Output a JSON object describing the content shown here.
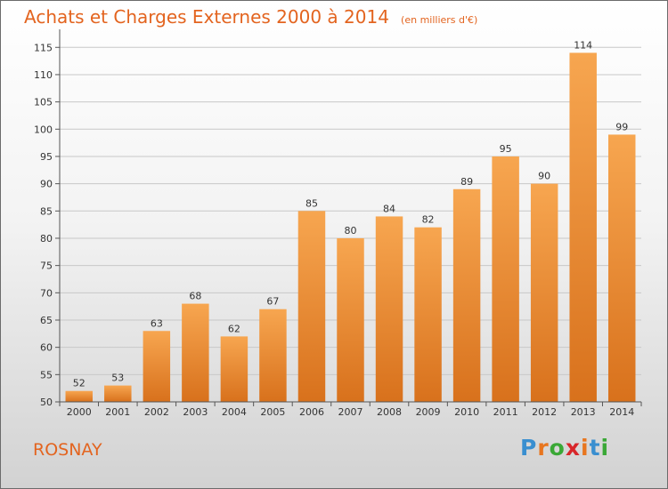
{
  "title": "Achats et Charges Externes 2000 à 2014",
  "subtitle": "(en milliers d'€)",
  "town": "ROSNAY",
  "logo": {
    "letters": [
      "P",
      "r",
      "o",
      "x",
      "i",
      "t",
      "i"
    ],
    "colors": [
      "#3a8fd0",
      "#e8761f",
      "#3aa836",
      "#d8262a",
      "#e8761f",
      "#3a8fd0",
      "#3aa836"
    ]
  },
  "colors": {
    "bar_top": "#f7a650",
    "bar_bottom": "#d8711c",
    "accent": "#e3641f"
  },
  "chart_data": {
    "type": "bar",
    "categories": [
      "2000",
      "2001",
      "2002",
      "2003",
      "2004",
      "2005",
      "2006",
      "2007",
      "2008",
      "2009",
      "2010",
      "2011",
      "2012",
      "2013",
      "2014"
    ],
    "values": [
      52,
      53,
      63,
      68,
      62,
      67,
      85,
      80,
      84,
      82,
      89,
      95,
      90,
      114,
      99
    ],
    "ylim": [
      50,
      117
    ],
    "yticks": [
      50,
      55,
      60,
      65,
      70,
      75,
      80,
      85,
      90,
      95,
      100,
      105,
      110,
      115
    ],
    "grid": true,
    "legend": "none"
  }
}
